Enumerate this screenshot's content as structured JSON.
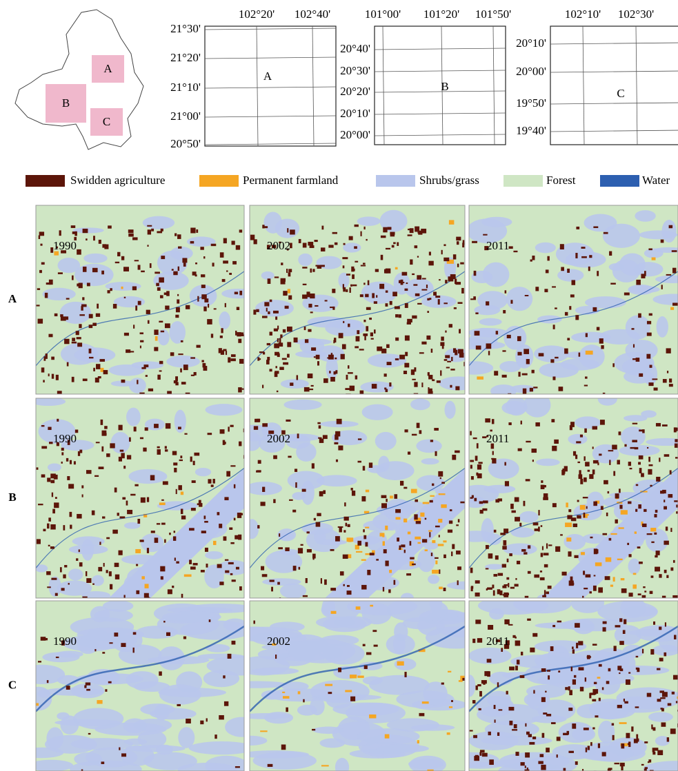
{
  "locator": {
    "labels": [
      "A",
      "B",
      "C"
    ]
  },
  "grids": [
    {
      "label": "A",
      "x_labels": [
        "102°20'",
        "102°40'"
      ],
      "y_labels": [
        "21°30'",
        "21°20'",
        "21°10'",
        "21°00'",
        "20°50'"
      ]
    },
    {
      "label": "B",
      "x_labels": [
        "101°00'",
        "101°20'",
        "101°50'"
      ],
      "y_labels": [
        "20°40'",
        "20°30'",
        "20°20'",
        "20°10'",
        "20°00'"
      ]
    },
    {
      "label": "C",
      "x_labels": [
        "102°10'",
        "102°30'"
      ],
      "y_labels": [
        "20°10'",
        "20°00'",
        "19°50'",
        "19°40'"
      ]
    }
  ],
  "legend": [
    {
      "label": "Swidden agriculture",
      "color": "#5c1509"
    },
    {
      "label": "Permanent farmland",
      "color": "#f5a623"
    },
    {
      "label": "Shrubs/grass",
      "color": "#b9c6ec"
    },
    {
      "label": "Forest",
      "color": "#cfe6c4"
    },
    {
      "label": "Water",
      "color": "#2d5fb0"
    }
  ],
  "rows": [
    {
      "label": "A",
      "years": [
        "1990",
        "2002",
        "2011"
      ]
    },
    {
      "label": "B",
      "years": [
        "1990",
        "2002",
        "2011"
      ]
    },
    {
      "label": "C",
      "years": [
        "1990",
        "2002",
        "2011"
      ]
    }
  ]
}
